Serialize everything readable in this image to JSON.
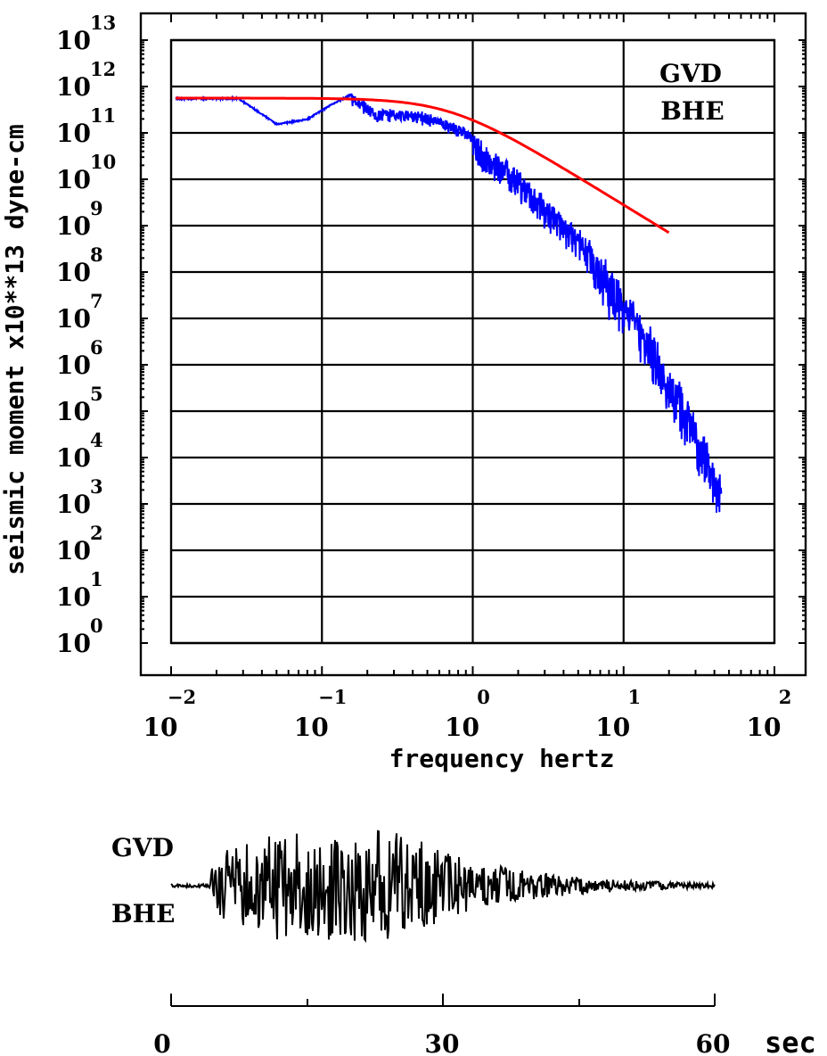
{
  "chart_data": [
    {
      "type": "line",
      "xlabel": "frequency  hertz",
      "ylabel": "seismic moment x10**13 dyne-cm",
      "x_scale": "log",
      "y_scale": "log",
      "x_ticks": [
        {
          "base": "10",
          "exp": "−2"
        },
        {
          "base": "10",
          "exp": "−1"
        },
        {
          "base": "10",
          "exp": "0"
        },
        {
          "base": "10",
          "exp": "1"
        },
        {
          "base": "10",
          "exp": "2"
        }
      ],
      "y_ticks": [
        {
          "base": "10",
          "exp": "13"
        },
        {
          "base": "10",
          "exp": "12"
        },
        {
          "base": "10",
          "exp": "11"
        },
        {
          "base": "10",
          "exp": "10"
        },
        {
          "base": "10",
          "exp": "9"
        },
        {
          "base": "10",
          "exp": "8"
        },
        {
          "base": "10",
          "exp": "7"
        },
        {
          "base": "10",
          "exp": "6"
        },
        {
          "base": "10",
          "exp": "5"
        },
        {
          "base": "10",
          "exp": "4"
        },
        {
          "base": "10",
          "exp": "3"
        },
        {
          "base": "10",
          "exp": "2"
        },
        {
          "base": "10",
          "exp": "1"
        },
        {
          "base": "10",
          "exp": "0"
        }
      ],
      "xlim_log10": [
        -2,
        2
      ],
      "ylim_log10": [
        0,
        13
      ],
      "grid": true,
      "station": "GVD",
      "component": "BHE",
      "series": [
        {
          "name": "observed spectrum",
          "color": "#0000ff",
          "x_log10": [
            -1.97,
            -1.55,
            -1.3,
            -1.1,
            -0.95,
            -0.8,
            -0.65,
            -0.5,
            -0.35,
            -0.2,
            -0.05,
            0.1,
            0.25,
            0.4,
            0.55,
            0.7,
            0.85,
            1.0,
            1.15,
            1.3,
            1.45,
            1.65
          ],
          "y_log10": [
            11.75,
            11.75,
            11.2,
            11.3,
            11.6,
            11.85,
            11.5,
            11.5,
            11.45,
            11.3,
            11.1,
            10.7,
            10.3,
            9.85,
            9.4,
            8.9,
            8.3,
            7.6,
            6.9,
            6.0,
            5.0,
            3.5
          ]
        },
        {
          "name": "model fit",
          "color": "#ff0000",
          "f0_log10": -0.15,
          "omega0_log10": 11.75,
          "x_range_log10": [
            -1.97,
            1.3
          ]
        }
      ]
    },
    {
      "type": "line",
      "station": "GVD",
      "component": "BHE",
      "unit": "sec",
      "x_ticks": [
        "0",
        "30",
        "60"
      ],
      "xlim": [
        0,
        60
      ],
      "series": [
        {
          "name": "seismogram",
          "color": "#000000"
        }
      ]
    }
  ]
}
